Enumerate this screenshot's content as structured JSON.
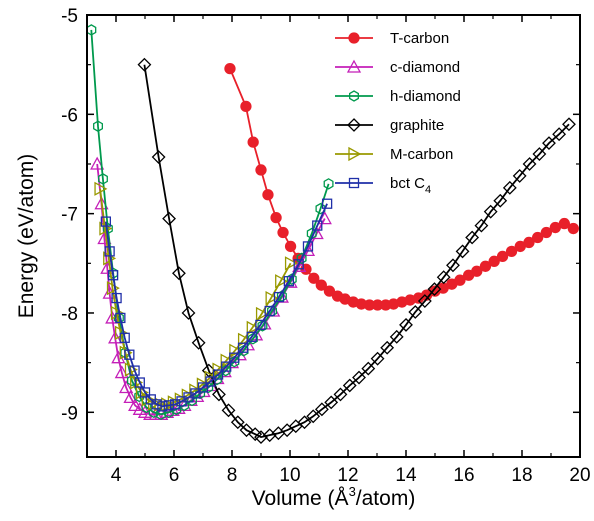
{
  "chart_data": {
    "type": "line",
    "title": "",
    "xlabel": "Volume (Å³/atom)",
    "xlabel_parts": {
      "prefix": "Volume (Å",
      "sup": "3",
      "suffix": "/atom)"
    },
    "ylabel": "Energy  (eV/atom)",
    "xlim": [
      3,
      20
    ],
    "ylim": [
      -9.45,
      -5
    ],
    "x_ticks": [
      4,
      6,
      8,
      10,
      12,
      14,
      16,
      18,
      20
    ],
    "x_tick_labels": [
      "4",
      "6",
      "8",
      "10",
      "12",
      "14",
      "16",
      "18",
      "20"
    ],
    "y_ticks": [
      -9,
      -8,
      -7,
      -6,
      -5
    ],
    "y_tick_labels": [
      "-9",
      "-8",
      "-7",
      "-6",
      "-5"
    ],
    "grid": false,
    "legend_position": "top-right",
    "series": [
      {
        "name": "T-carbon",
        "label_main": "T-carbon",
        "label_sub": "",
        "color": "#e8202a",
        "marker": "filled-circle",
        "x": [
          7.93,
          8.48,
          8.73,
          9.0,
          9.24,
          9.52,
          9.76,
          10.02,
          10.28,
          10.55,
          10.82,
          11.08,
          11.36,
          11.64,
          11.9,
          12.18,
          12.46,
          12.74,
          13.02,
          13.3,
          13.57,
          13.86,
          14.14,
          14.43,
          14.71,
          15.0,
          15.28,
          15.58,
          15.86,
          16.16,
          16.44,
          16.74,
          17.04,
          17.33,
          17.64,
          17.94,
          18.24,
          18.54,
          18.84,
          19.15,
          19.46,
          19.77
        ],
        "y": [
          -5.54,
          -5.92,
          -6.28,
          -6.56,
          -6.81,
          -7.04,
          -7.19,
          -7.33,
          -7.45,
          -7.56,
          -7.65,
          -7.72,
          -7.78,
          -7.83,
          -7.86,
          -7.89,
          -7.91,
          -7.92,
          -7.92,
          -7.92,
          -7.91,
          -7.89,
          -7.87,
          -7.85,
          -7.82,
          -7.78,
          -7.75,
          -7.71,
          -7.67,
          -7.62,
          -7.58,
          -7.53,
          -7.48,
          -7.43,
          -7.38,
          -7.33,
          -7.29,
          -7.24,
          -7.19,
          -7.14,
          -7.1,
          -7.15
        ]
      },
      {
        "name": "c-diamond",
        "label_main": "c-diamond",
        "label_sub": "",
        "color": "#c41fb8",
        "marker": "open-triangle",
        "x": [
          3.35,
          3.5,
          3.6,
          3.7,
          3.78,
          3.87,
          3.97,
          4.08,
          4.2,
          4.35,
          4.5,
          4.66,
          4.82,
          5.0,
          5.18,
          5.37,
          5.56,
          5.76,
          5.96,
          6.16,
          6.36,
          6.58,
          6.8,
          7.02,
          7.26,
          7.5,
          7.75,
          8.0,
          8.27,
          8.55,
          8.83,
          9.12,
          9.42,
          9.72,
          10.02,
          10.32,
          10.62,
          10.92,
          11.2
        ],
        "y": [
          -6.5,
          -6.9,
          -7.25,
          -7.55,
          -7.8,
          -8.05,
          -8.25,
          -8.45,
          -8.6,
          -8.75,
          -8.85,
          -8.93,
          -8.97,
          -9.0,
          -9.02,
          -9.02,
          -9.02,
          -9.0,
          -8.98,
          -8.96,
          -8.93,
          -8.88,
          -8.84,
          -8.79,
          -8.73,
          -8.66,
          -8.59,
          -8.5,
          -8.42,
          -8.32,
          -8.22,
          -8.11,
          -7.98,
          -7.84,
          -7.69,
          -7.53,
          -7.37,
          -7.2,
          -7.05
        ]
      },
      {
        "name": "h-diamond",
        "label_main": "h-diamond",
        "label_sub": "",
        "color": "#00994d",
        "marker": "open-hexagon",
        "x": [
          3.15,
          3.38,
          3.55,
          3.72,
          3.9,
          4.1,
          4.32,
          4.55,
          4.8,
          5.05,
          5.3,
          5.55,
          5.82,
          6.08,
          6.35,
          6.62,
          6.9,
          7.18,
          7.48,
          7.78,
          8.08,
          8.4,
          8.72,
          9.05,
          9.38,
          9.72,
          10.06,
          10.4,
          10.75,
          11.05,
          11.33
        ],
        "y": [
          -5.15,
          -6.12,
          -6.65,
          -7.15,
          -7.6,
          -8.05,
          -8.4,
          -8.68,
          -8.84,
          -8.95,
          -9.0,
          -9.02,
          -9.0,
          -8.97,
          -8.93,
          -8.88,
          -8.81,
          -8.75,
          -8.67,
          -8.58,
          -8.49,
          -8.38,
          -8.26,
          -8.13,
          -7.98,
          -7.83,
          -7.66,
          -7.45,
          -7.2,
          -6.95,
          -6.7
        ]
      },
      {
        "name": "graphite",
        "label_main": "graphite",
        "label_sub": "",
        "color": "#000000",
        "marker": "open-diamond",
        "x": [
          4.98,
          5.47,
          5.83,
          6.17,
          6.5,
          6.85,
          7.2,
          7.55,
          7.88,
          8.2,
          8.5,
          8.8,
          9.0,
          9.3,
          9.6,
          9.9,
          10.2,
          10.5,
          10.8,
          11.1,
          11.42,
          11.74,
          12.06,
          12.38,
          12.7,
          13.02,
          13.35,
          13.68,
          14.0,
          14.32,
          14.65,
          14.98,
          15.3,
          15.62,
          15.95,
          16.28,
          16.6,
          16.92,
          17.25,
          17.58,
          17.92,
          18.26,
          18.6,
          18.93,
          19.28,
          19.62
        ],
        "y": [
          -5.5,
          -6.43,
          -7.05,
          -7.6,
          -8.0,
          -8.3,
          -8.58,
          -8.82,
          -8.98,
          -9.1,
          -9.18,
          -9.22,
          -9.25,
          -9.23,
          -9.21,
          -9.18,
          -9.14,
          -9.1,
          -9.04,
          -8.97,
          -8.9,
          -8.82,
          -8.73,
          -8.65,
          -8.56,
          -8.46,
          -8.35,
          -8.24,
          -8.12,
          -7.99,
          -7.88,
          -7.76,
          -7.64,
          -7.52,
          -7.38,
          -7.24,
          -7.12,
          -6.98,
          -6.87,
          -6.74,
          -6.62,
          -6.5,
          -6.4,
          -6.29,
          -6.2,
          -6.1
        ]
      },
      {
        "name": "M-carbon",
        "label_main": "M-carbon",
        "label_sub": "",
        "color": "#999900",
        "marker": "open-triangle-right",
        "x": [
          3.45,
          3.62,
          3.75,
          3.88,
          4.02,
          4.16,
          4.32,
          4.5,
          4.68,
          4.88,
          5.08,
          5.3,
          5.52,
          5.75,
          5.98,
          6.22,
          6.46,
          6.72,
          6.98,
          7.25,
          7.52,
          7.8,
          8.1,
          8.4,
          8.7,
          9.02,
          9.35,
          9.68,
          10.02
        ],
        "y": [
          -6.75,
          -7.15,
          -7.45,
          -7.75,
          -8.0,
          -8.2,
          -8.4,
          -8.57,
          -8.7,
          -8.8,
          -8.87,
          -8.91,
          -8.92,
          -8.92,
          -8.9,
          -8.87,
          -8.83,
          -8.78,
          -8.72,
          -8.65,
          -8.57,
          -8.48,
          -8.38,
          -8.27,
          -8.15,
          -8.01,
          -7.85,
          -7.68,
          -7.5
        ]
      },
      {
        "name": "bct C4",
        "label_main": "bct C",
        "label_sub": "4",
        "color": "#1f2fa8",
        "marker": "open-square",
        "x": [
          3.65,
          3.78,
          3.9,
          4.02,
          4.15,
          4.3,
          4.46,
          4.64,
          4.82,
          5.0,
          5.2,
          5.4,
          5.6,
          5.82,
          6.04,
          6.26,
          6.5,
          6.74,
          7.0,
          7.26,
          7.52,
          7.8,
          8.08,
          8.38,
          8.68,
          8.98,
          9.3,
          9.62,
          9.96,
          10.3,
          10.62,
          10.94,
          11.28
        ],
        "y": [
          -7.08,
          -7.38,
          -7.62,
          -7.85,
          -8.05,
          -8.25,
          -8.42,
          -8.58,
          -8.7,
          -8.8,
          -8.87,
          -8.92,
          -8.94,
          -8.93,
          -8.92,
          -8.89,
          -8.85,
          -8.81,
          -8.75,
          -8.69,
          -8.62,
          -8.54,
          -8.45,
          -8.35,
          -8.24,
          -8.12,
          -7.98,
          -7.84,
          -7.68,
          -7.51,
          -7.33,
          -7.12,
          -6.9
        ]
      }
    ]
  }
}
